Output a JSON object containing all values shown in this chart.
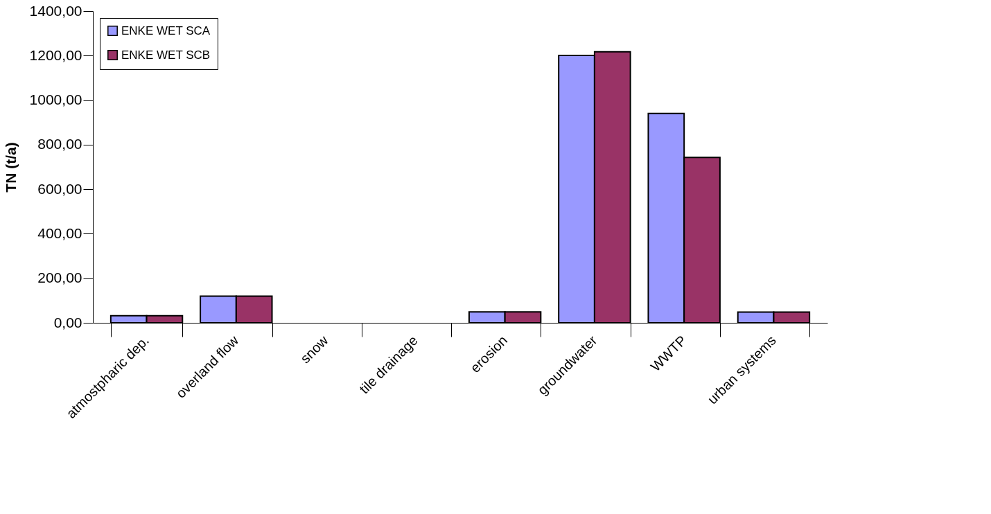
{
  "chart_data": {
    "type": "bar",
    "ylabel": "TN (t/a)",
    "categories": [
      "atmostpharic dep.",
      "overland flow",
      "snow",
      "tile drainage",
      "erosion",
      "groundwater",
      "WWTP",
      "urban systems"
    ],
    "series": [
      {
        "name": "ENKE WET SCA",
        "color": "#9999ff",
        "values": [
          32,
          120,
          0,
          0,
          49,
          1201,
          940,
          48
        ]
      },
      {
        "name": "ENKE WET SCB",
        "color": "#993366",
        "values": [
          32,
          120,
          0,
          0,
          49,
          1217,
          743,
          48
        ]
      }
    ],
    "ylim": [
      0,
      1400
    ],
    "yticks": [
      {
        "value": 0,
        "label": "0,00"
      },
      {
        "value": 200,
        "label": "200,00"
      },
      {
        "value": 400,
        "label": "400,00"
      },
      {
        "value": 600,
        "label": "600,00"
      },
      {
        "value": 800,
        "label": "800,00"
      },
      {
        "value": 1000,
        "label": "1000,00"
      },
      {
        "value": 1200,
        "label": "1200,00"
      },
      {
        "value": 1400,
        "label": "1400,00"
      }
    ],
    "grid": false,
    "legend": "top left"
  }
}
